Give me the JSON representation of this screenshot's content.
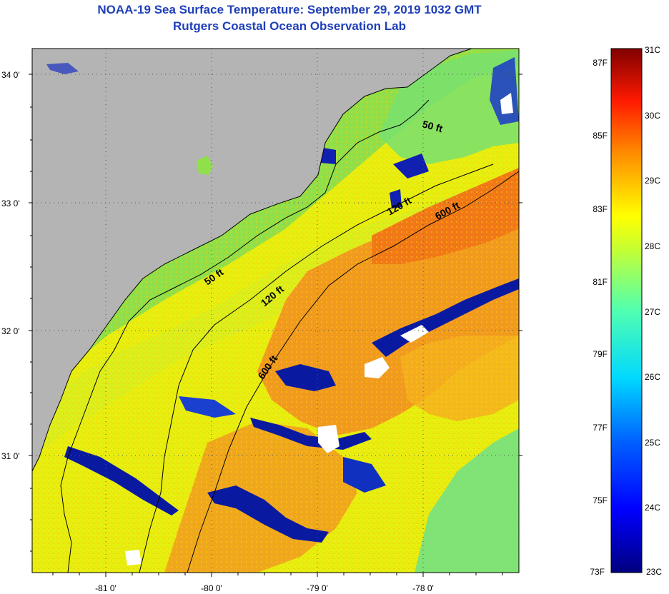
{
  "header": {
    "title": "NOAA-19 Sea Surface Temperature:  September 29, 2019 1032 GMT",
    "subtitle": "Rutgers Coastal Ocean Observation Lab"
  },
  "map": {
    "lon_labels": [
      "-81 0'",
      "-80 0'",
      "-79 0'",
      "-78 0'"
    ],
    "lat_labels": [
      "34 0'",
      "33 0'",
      "32 0'",
      "31 0'"
    ],
    "contours": {
      "c50a": "50 ft",
      "c50b": "50 ft",
      "c120a": "120 ft",
      "c120b": "120 ft",
      "c600a": "600 ft",
      "c600b": "600 ft"
    }
  },
  "colorbar": {
    "celsius": [
      "31C",
      "30C",
      "29C",
      "28C",
      "27C",
      "26C",
      "25C",
      "24C",
      "23C"
    ],
    "fahrenheit": [
      "87F",
      "85F",
      "83F",
      "81F",
      "79F",
      "77F",
      "75F",
      "73F"
    ]
  },
  "colors": {
    "land": "#b4b4b4",
    "title": "#1f3fb8",
    "warm": "#f08a1e",
    "cool": "#0a1aa0"
  }
}
